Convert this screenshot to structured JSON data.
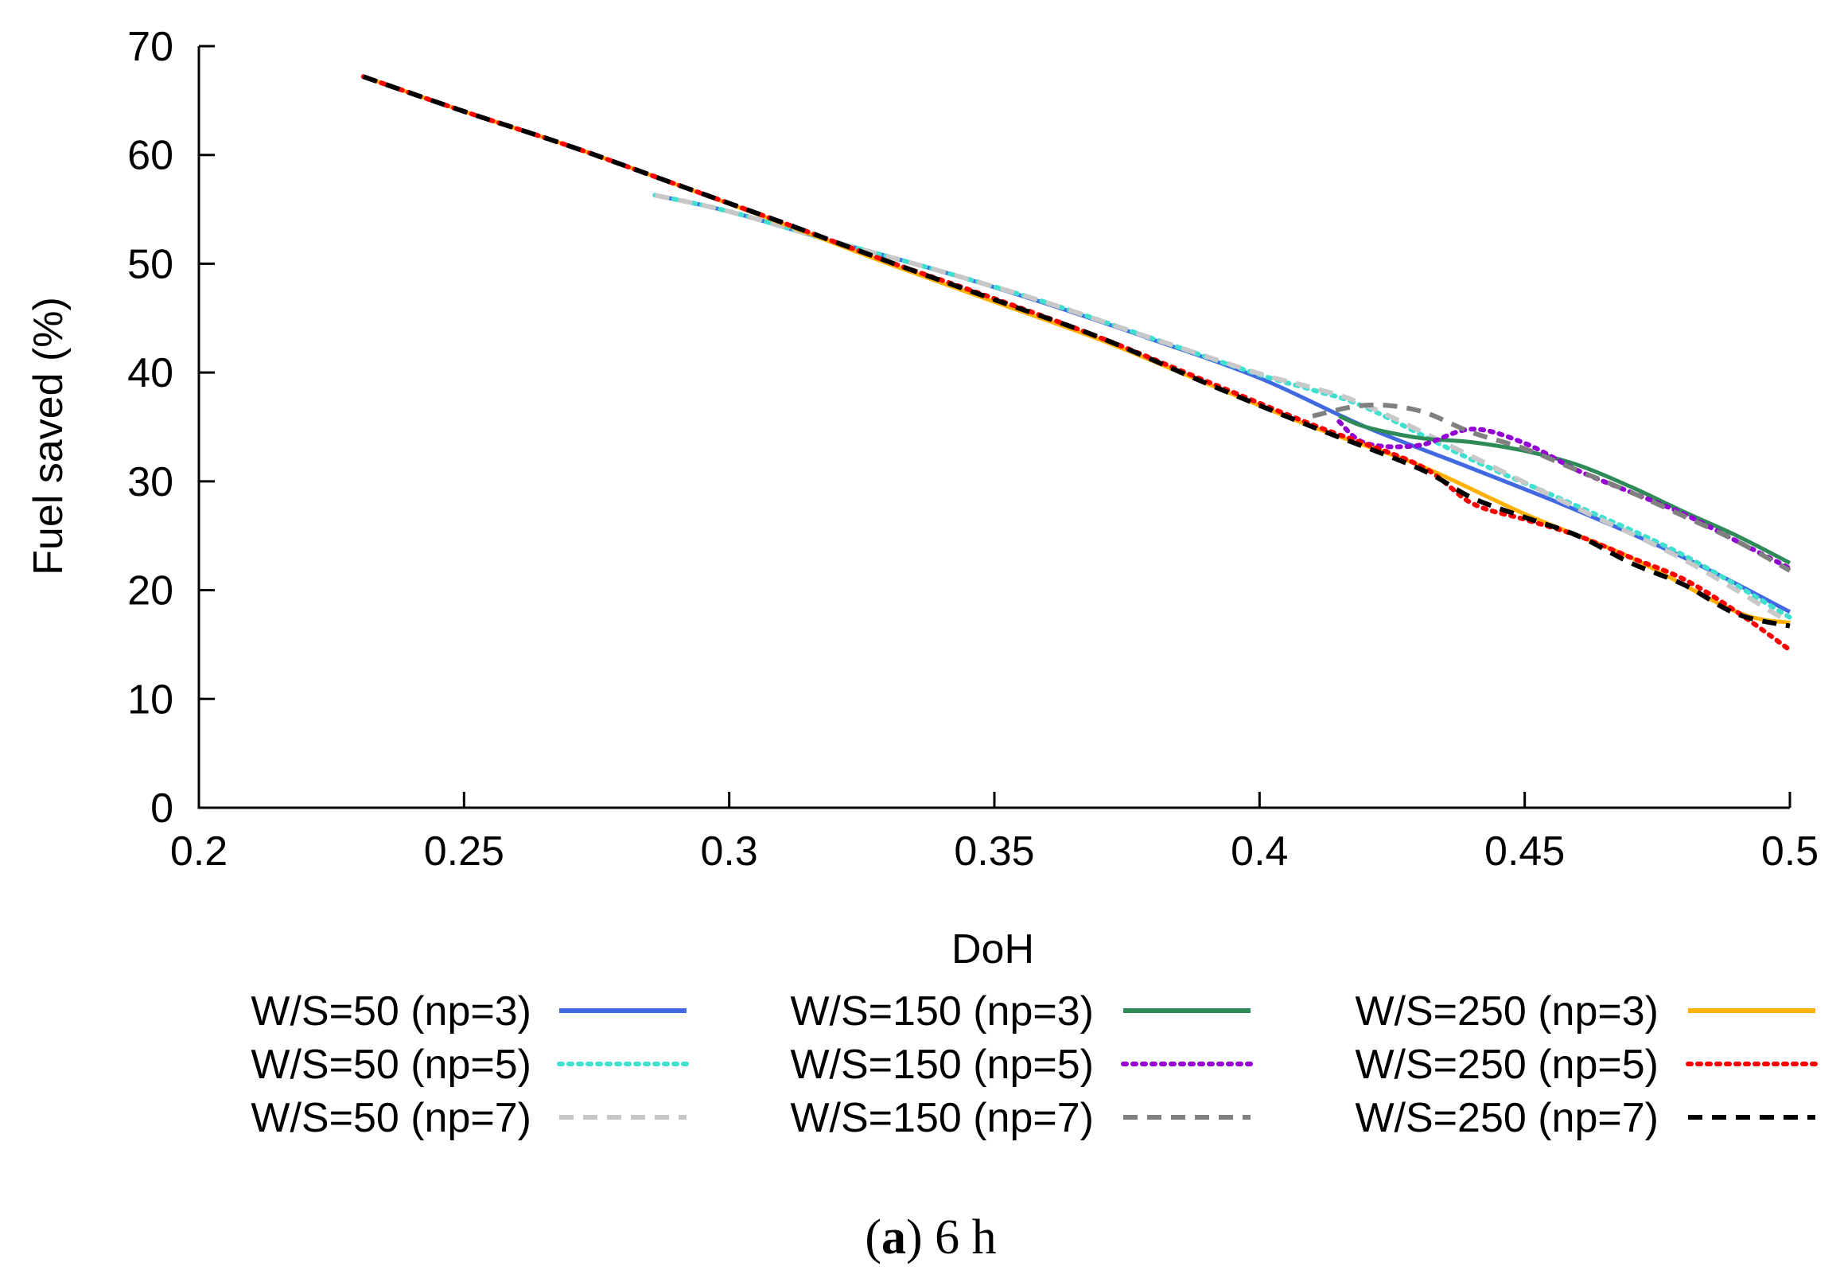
{
  "chart_data": {
    "type": "line",
    "title": "",
    "xlabel": "DoH",
    "ylabel": "Fuel saved (%)",
    "xlim": [
      0.2,
      0.5
    ],
    "ylim": [
      0,
      70
    ],
    "xticks": [
      0.2,
      0.25,
      0.3,
      0.35,
      0.4,
      0.45,
      0.5
    ],
    "xtick_labels": [
      "0.2",
      "0.25",
      "0.3",
      "0.35",
      "0.4",
      "0.45",
      "0.5"
    ],
    "yticks": [
      0,
      10,
      20,
      30,
      40,
      50,
      60,
      70
    ],
    "ytick_labels": [
      "0",
      "10",
      "20",
      "30",
      "40",
      "50",
      "60",
      "70"
    ],
    "grid": false,
    "legend_position": "bottom",
    "caption_prefix": "(",
    "caption_letter": "a",
    "caption_suffix": ") 6 h",
    "series": [
      {
        "name": "W/S=50 (np=3)",
        "color": "#4169e1",
        "style": "solid",
        "x": [
          0.286,
          0.3,
          0.32,
          0.34,
          0.36,
          0.38,
          0.4,
          0.42,
          0.44,
          0.46,
          0.48,
          0.5
        ],
        "y": [
          56.3,
          54.8,
          52.0,
          49.3,
          46.3,
          43.0,
          39.5,
          35.0,
          31.2,
          27.3,
          23.0,
          18.0
        ]
      },
      {
        "name": "W/S=50 (np=5)",
        "color": "#40e0d0",
        "style": "dotted",
        "x": [
          0.286,
          0.3,
          0.32,
          0.34,
          0.36,
          0.38,
          0.4,
          0.41,
          0.42,
          0.44,
          0.46,
          0.48,
          0.5
        ],
        "y": [
          56.3,
          54.8,
          52.0,
          49.3,
          46.4,
          43.1,
          39.8,
          38.4,
          36.8,
          32.0,
          27.7,
          23.2,
          17.5
        ]
      },
      {
        "name": "W/S=50 (np=7)",
        "color": "#c8c8c8",
        "style": "dashed",
        "x": [
          0.286,
          0.3,
          0.32,
          0.34,
          0.36,
          0.38,
          0.4,
          0.41,
          0.42,
          0.44,
          0.46,
          0.48,
          0.5
        ],
        "y": [
          56.3,
          54.8,
          52.0,
          49.3,
          46.4,
          43.1,
          39.9,
          38.6,
          37.0,
          32.3,
          27.5,
          22.8,
          17.0
        ]
      },
      {
        "name": "W/S=150 (np=3)",
        "color": "#2e8b57",
        "style": "solid",
        "x": [
          0.415,
          0.42,
          0.43,
          0.44,
          0.45,
          0.46,
          0.47,
          0.48,
          0.49,
          0.5
        ],
        "y": [
          36.0,
          35.0,
          34.0,
          33.6,
          32.8,
          31.5,
          29.5,
          27.2,
          25.0,
          22.5
        ]
      },
      {
        "name": "W/S=150 (np=5)",
        "color": "#9400d3",
        "style": "dotted",
        "x": [
          0.415,
          0.42,
          0.43,
          0.44,
          0.45,
          0.46,
          0.47,
          0.48,
          0.49,
          0.5
        ],
        "y": [
          35.5,
          33.5,
          33.3,
          34.8,
          33.5,
          31.0,
          29.0,
          27.0,
          24.5,
          22.0
        ]
      },
      {
        "name": "W/S=150 (np=7)",
        "color": "#808080",
        "style": "dashed",
        "x": [
          0.41,
          0.42,
          0.43,
          0.44,
          0.45,
          0.46,
          0.47,
          0.48,
          0.49,
          0.5
        ],
        "y": [
          36.0,
          37.0,
          36.5,
          34.5,
          33.0,
          31.0,
          29.0,
          26.8,
          24.5,
          21.8
        ]
      },
      {
        "name": "W/S=250 (np=3)",
        "color": "#ffb000",
        "style": "solid",
        "x": [
          0.231,
          0.25,
          0.27,
          0.29,
          0.31,
          0.33,
          0.35,
          0.37,
          0.39,
          0.41,
          0.43,
          0.45,
          0.47,
          0.49,
          0.5
        ],
        "y": [
          67.2,
          64.0,
          60.8,
          57.3,
          53.7,
          50.0,
          46.5,
          43.0,
          39.0,
          35.0,
          31.5,
          27.0,
          23.0,
          18.0,
          17.0
        ]
      },
      {
        "name": "W/S=250 (np=5)",
        "color": "#ff0000",
        "style": "dotted",
        "x": [
          0.231,
          0.25,
          0.27,
          0.29,
          0.31,
          0.33,
          0.35,
          0.37,
          0.39,
          0.41,
          0.43,
          0.44,
          0.45,
          0.46,
          0.47,
          0.48,
          0.49,
          0.5
        ],
        "y": [
          67.2,
          64.0,
          60.8,
          57.3,
          53.8,
          50.2,
          46.8,
          43.2,
          39.2,
          35.2,
          31.5,
          28.0,
          26.5,
          25.0,
          23.0,
          21.0,
          18.0,
          14.5
        ]
      },
      {
        "name": "W/S=250 (np=7)",
        "color": "#000000",
        "style": "dashed",
        "x": [
          0.231,
          0.25,
          0.27,
          0.29,
          0.31,
          0.33,
          0.35,
          0.37,
          0.39,
          0.41,
          0.43,
          0.44,
          0.45,
          0.46,
          0.47,
          0.48,
          0.49,
          0.5
        ],
        "y": [
          67.2,
          64.0,
          60.8,
          57.3,
          53.8,
          50.2,
          46.7,
          43.2,
          39.0,
          35.0,
          31.2,
          28.5,
          26.7,
          25.0,
          22.5,
          20.5,
          17.8,
          16.7
        ]
      }
    ]
  }
}
